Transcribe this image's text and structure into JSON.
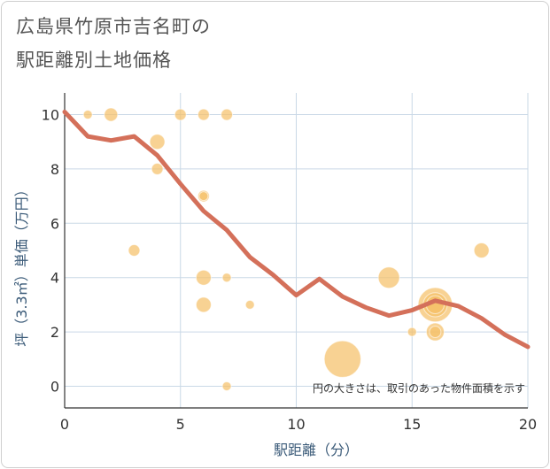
{
  "title_line1": "広島県竹原市吉名町の",
  "title_line2": "駅距離別土地価格",
  "chart_data": {
    "type": "scatter",
    "xlabel": "駅距離（分）",
    "ylabel": "坪（3.3㎡）単価（万円）",
    "xlim": [
      0,
      20
    ],
    "ylim": [
      -0.8,
      10.8
    ],
    "xticks": [
      0,
      5,
      10,
      15,
      20
    ],
    "yticks": [
      0,
      2,
      4,
      6,
      8,
      10
    ],
    "grid": true,
    "note": "円の大きさは、取引のあった物件面積を示す",
    "colors": {
      "bubble": "#f5c06a",
      "line": "#d4705a",
      "grid": "#c9d8e6"
    },
    "points": [
      {
        "x": 1,
        "y": 10,
        "size": 1
      },
      {
        "x": 2,
        "y": 10,
        "size": 3
      },
      {
        "x": 5,
        "y": 10,
        "size": 2
      },
      {
        "x": 6,
        "y": 10,
        "size": 2
      },
      {
        "x": 7,
        "y": 10,
        "size": 2
      },
      {
        "x": 4,
        "y": 9,
        "size": 4
      },
      {
        "x": 4,
        "y": 8,
        "size": 2
      },
      {
        "x": 6,
        "y": 7,
        "size": 2
      },
      {
        "x": 6,
        "y": 7,
        "size": 1
      },
      {
        "x": 3,
        "y": 5,
        "size": 2
      },
      {
        "x": 6,
        "y": 4,
        "size": 4
      },
      {
        "x": 7,
        "y": 4,
        "size": 1
      },
      {
        "x": 6,
        "y": 3,
        "size": 4
      },
      {
        "x": 8,
        "y": 3,
        "size": 1
      },
      {
        "x": 7,
        "y": 0,
        "size": 1
      },
      {
        "x": 12,
        "y": 1,
        "size": 30
      },
      {
        "x": 14,
        "y": 4,
        "size": 9
      },
      {
        "x": 15,
        "y": 2,
        "size": 1
      },
      {
        "x": 16,
        "y": 3,
        "size": 26
      },
      {
        "x": 16,
        "y": 3,
        "size": 12
      },
      {
        "x": 16,
        "y": 3,
        "size": 6
      },
      {
        "x": 16,
        "y": 2,
        "size": 6
      },
      {
        "x": 16,
        "y": 2,
        "size": 2
      },
      {
        "x": 18,
        "y": 5,
        "size": 4
      }
    ],
    "line": {
      "x": [
        0,
        1,
        2,
        3,
        4,
        5,
        6,
        7,
        8,
        9,
        10,
        11,
        12,
        13,
        14,
        15,
        16,
        17,
        18,
        19,
        20
      ],
      "y": [
        10.1,
        9.2,
        9.05,
        9.2,
        8.5,
        7.45,
        6.45,
        5.75,
        4.75,
        4.1,
        3.35,
        3.95,
        3.3,
        2.9,
        2.6,
        2.8,
        3.15,
        2.95,
        2.5,
        1.9,
        1.45
      ]
    }
  }
}
